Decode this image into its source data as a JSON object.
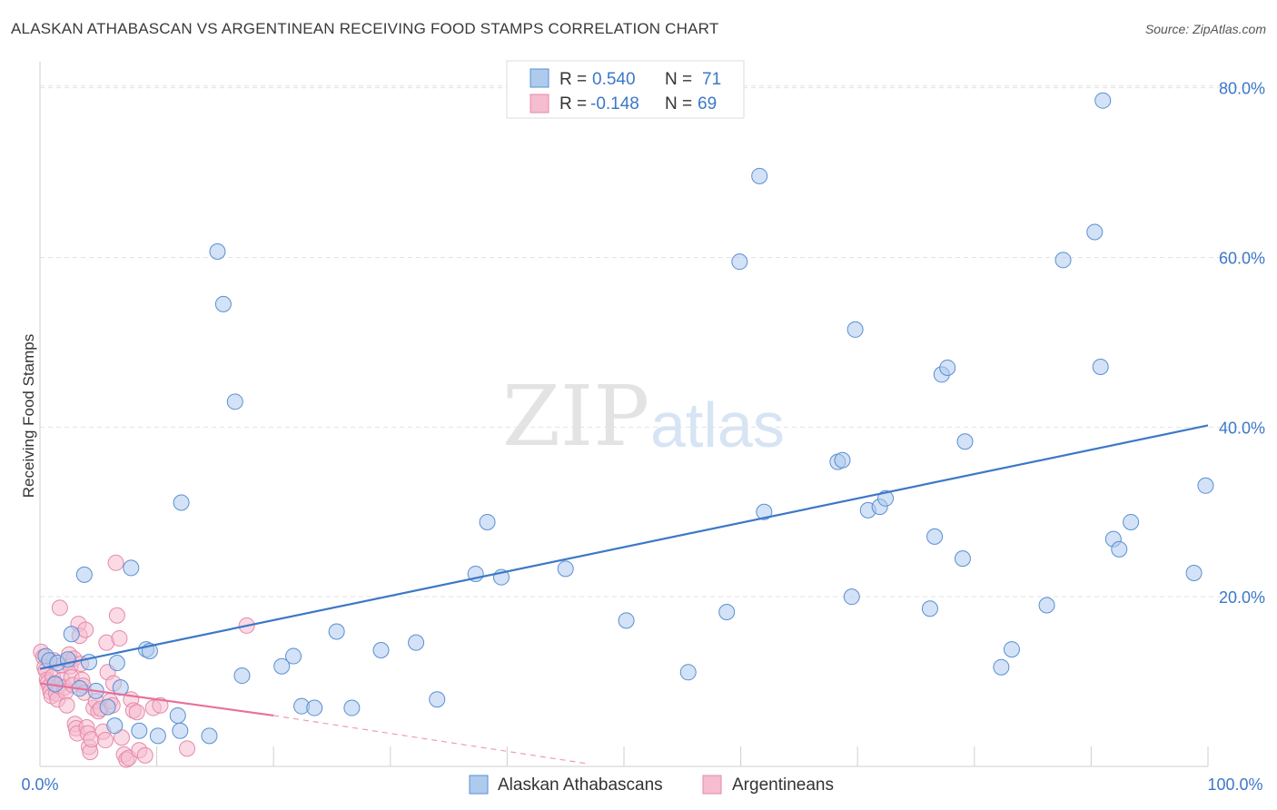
{
  "title": "ALASKAN ATHABASCAN VS ARGENTINEAN RECEIVING FOOD STAMPS CORRELATION CHART",
  "source": "Source: ZipAtlas.com",
  "watermark": {
    "zip": "ZIP",
    "atlas": "atlas"
  },
  "colors": {
    "blue": "#3c78c8",
    "blue_fill": "#aecbee",
    "pink": "#e8709a",
    "pink_fill": "#f6bcd0",
    "grid": "#e3e3e3"
  },
  "legend": {
    "r_label": "R =",
    "n_label": "N =",
    "rows": [
      {
        "r": "0.540",
        "n": "71"
      },
      {
        "r": "-0.148",
        "n": "69"
      }
    ]
  },
  "chart_data": {
    "type": "scatter",
    "title": "ALASKAN ATHABASCAN VS ARGENTINEAN RECEIVING FOOD STAMPS CORRELATION CHART",
    "xlabel": "",
    "ylabel": "Receiving Food Stamps",
    "xlim": [
      0,
      100
    ],
    "ylim": [
      0,
      82
    ],
    "x_tick_labels": [
      "0.0%",
      "100.0%"
    ],
    "y_ticks": [
      20,
      40,
      60,
      80
    ],
    "y_tick_labels": [
      "20.0%",
      "40.0%",
      "60.0%",
      "80.0%"
    ],
    "series": [
      {
        "name": "Alaskan Athabascans",
        "r": 0.54,
        "n": 71,
        "trend": {
          "x": [
            0,
            100
          ],
          "y": [
            11.5,
            40.2
          ]
        },
        "points": [
          [
            0.5,
            13
          ],
          [
            0.8,
            12.5
          ],
          [
            1.5,
            12.2
          ],
          [
            2.4,
            12.6
          ],
          [
            2.7,
            15.6
          ],
          [
            3.8,
            22.6
          ],
          [
            4.2,
            12.3
          ],
          [
            6.6,
            12.2
          ],
          [
            7.8,
            23.4
          ],
          [
            9.1,
            13.8
          ],
          [
            9.4,
            13.6
          ],
          [
            12.1,
            31.1
          ],
          [
            15.2,
            60.7
          ],
          [
            15.7,
            54.5
          ],
          [
            16.7,
            43
          ],
          [
            17.3,
            10.7
          ],
          [
            20.7,
            11.8
          ],
          [
            21.7,
            13
          ],
          [
            22.4,
            7.1
          ],
          [
            23.5,
            6.9
          ],
          [
            25.4,
            15.9
          ],
          [
            26.7,
            6.9
          ],
          [
            29.2,
            13.7
          ],
          [
            32.2,
            14.6
          ],
          [
            34,
            7.9
          ],
          [
            37.3,
            22.7
          ],
          [
            38.3,
            28.8
          ],
          [
            39.5,
            22.3
          ],
          [
            45,
            23.3
          ],
          [
            50.2,
            17.2
          ],
          [
            55.5,
            11.1
          ],
          [
            58.8,
            18.2
          ],
          [
            59.9,
            59.5
          ],
          [
            61.6,
            69.6
          ],
          [
            62,
            30
          ],
          [
            68.3,
            35.9
          ],
          [
            68.7,
            36.1
          ],
          [
            69.5,
            20
          ],
          [
            69.8,
            51.5
          ],
          [
            70.9,
            30.2
          ],
          [
            71.9,
            30.6
          ],
          [
            72.4,
            31.6
          ],
          [
            76.2,
            18.6
          ],
          [
            76.6,
            27.1
          ],
          [
            77.2,
            46.2
          ],
          [
            77.7,
            47
          ],
          [
            79,
            24.5
          ],
          [
            79.2,
            38.3
          ],
          [
            82.3,
            11.7
          ],
          [
            83.2,
            13.8
          ],
          [
            86.2,
            19
          ],
          [
            87.6,
            59.7
          ],
          [
            90.3,
            63
          ],
          [
            90.8,
            47.1
          ],
          [
            91,
            78.5
          ],
          [
            91.9,
            26.8
          ],
          [
            92.4,
            25.6
          ],
          [
            93.4,
            28.8
          ],
          [
            98.8,
            22.8
          ],
          [
            99.8,
            33.1
          ],
          [
            6.9,
            9.3
          ],
          [
            8.5,
            4.2
          ],
          [
            6.4,
            4.8
          ],
          [
            10.1,
            3.6
          ],
          [
            12,
            4.2
          ],
          [
            11.8,
            6
          ],
          [
            14.5,
            3.6
          ],
          [
            5.8,
            7
          ],
          [
            4.8,
            8.9
          ],
          [
            3.4,
            9.2
          ],
          [
            1.3,
            9.7
          ]
        ]
      },
      {
        "name": "Argentineans",
        "r": -0.148,
        "n": 69,
        "trend": {
          "x": [
            0,
            20
          ],
          "y": [
            9.8,
            6
          ],
          "dash_x": [
            20,
            47
          ],
          "dash_y": [
            6,
            0.3
          ]
        },
        "points": [
          [
            0.1,
            13.5
          ],
          [
            0.3,
            12.9
          ],
          [
            0.4,
            11.7
          ],
          [
            0.5,
            11.3
          ],
          [
            0.6,
            10.2
          ],
          [
            0.7,
            9.9
          ],
          [
            0.8,
            9.4
          ],
          [
            0.9,
            8.8
          ],
          [
            1,
            8.3
          ],
          [
            1.1,
            10.6
          ],
          [
            1.2,
            12.5
          ],
          [
            1.3,
            9.8
          ],
          [
            1.4,
            8.6
          ],
          [
            1.5,
            7.9
          ],
          [
            1.6,
            9.5
          ],
          [
            1.7,
            18.7
          ],
          [
            1.8,
            11.9
          ],
          [
            1.9,
            10.2
          ],
          [
            2.1,
            9.3
          ],
          [
            2.2,
            8.8
          ],
          [
            2.3,
            7.2
          ],
          [
            2.4,
            12.3
          ],
          [
            2.5,
            13.2
          ],
          [
            2.6,
            11.8
          ],
          [
            2.7,
            10.5
          ],
          [
            2.8,
            9.6
          ],
          [
            2.9,
            12.7
          ],
          [
            3,
            5
          ],
          [
            3.1,
            4.5
          ],
          [
            3.2,
            3.9
          ],
          [
            3.3,
            16.8
          ],
          [
            3.4,
            15.4
          ],
          [
            3.5,
            12.1
          ],
          [
            3.6,
            10.2
          ],
          [
            3.7,
            9.5
          ],
          [
            3.8,
            8.7
          ],
          [
            3.9,
            16.1
          ],
          [
            4,
            4.6
          ],
          [
            4.1,
            3.9
          ],
          [
            4.2,
            2.3
          ],
          [
            4.3,
            1.7
          ],
          [
            4.4,
            3.2
          ],
          [
            4.6,
            6.9
          ],
          [
            4.8,
            7.7
          ],
          [
            5,
            6.5
          ],
          [
            5.2,
            6.8
          ],
          [
            5.4,
            4.1
          ],
          [
            5.6,
            3.1
          ],
          [
            5.7,
            14.6
          ],
          [
            5.8,
            11.1
          ],
          [
            6,
            7.7
          ],
          [
            6.2,
            7.2
          ],
          [
            6.3,
            9.8
          ],
          [
            6.5,
            24
          ],
          [
            6.6,
            17.8
          ],
          [
            6.8,
            15.1
          ],
          [
            7,
            3.4
          ],
          [
            7.2,
            1.4
          ],
          [
            7.4,
            0.8
          ],
          [
            7.6,
            1
          ],
          [
            7.8,
            7.9
          ],
          [
            8,
            6.6
          ],
          [
            8.3,
            6.4
          ],
          [
            8.5,
            1.9
          ],
          [
            9,
            1.3
          ],
          [
            9.7,
            6.9
          ],
          [
            10.3,
            7.2
          ],
          [
            12.6,
            2.1
          ],
          [
            17.7,
            16.6
          ]
        ]
      }
    ]
  }
}
